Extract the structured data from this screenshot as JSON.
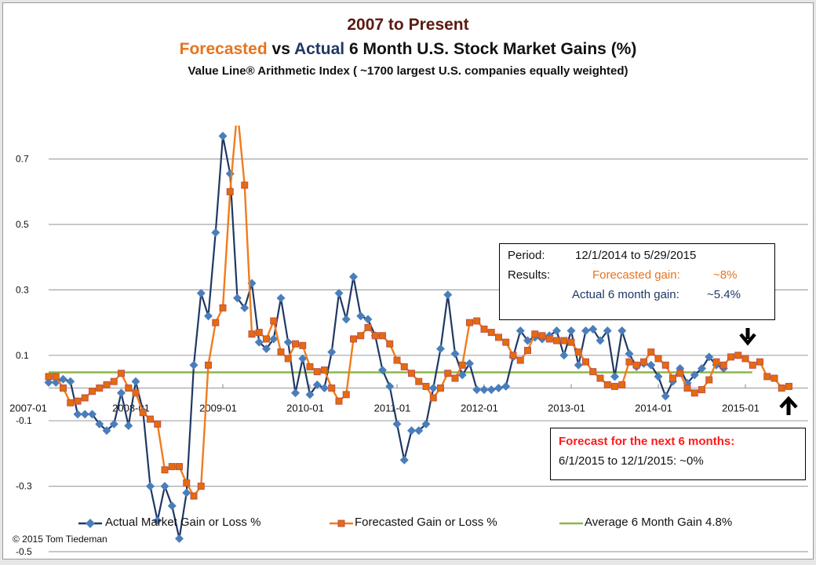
{
  "title": {
    "line1": "2007 to Present",
    "line2_forecasted": "Forecasted",
    "line2_vs": " vs ",
    "line2_actual": "Actual",
    "line2_rest": " 6 Month U.S. Stock Market Gains (%)",
    "line3": "Value Line® Arithmetic Index ( ~1700  largest U.S. companies equally weighted)"
  },
  "results_box": {
    "period_label": "Period:",
    "period_value": "12/1/2014  to 5/29/2015",
    "results_label": "Results:",
    "forecasted_label": "Forecasted gain:",
    "forecasted_value": "~8%",
    "actual_label": "Actual 6 month gain:",
    "actual_value": "~5.4%"
  },
  "forecast_box": {
    "heading": "Forecast for  the next 6 months:",
    "body": "6/1/2015  to 12/1/2015:   ~0%"
  },
  "copyright": "©  2015 Tom Tiedeman",
  "colors": {
    "actual_line": "#1f3864",
    "actual_marker": "#4a7ebb",
    "forecast_line": "#f07c1c",
    "forecast_marker_fill": "#e46c0a",
    "forecast_marker_edge": "#c0504d",
    "average_line": "#8db64a",
    "gridline": "#a6a6a6",
    "arrow": "#000000"
  },
  "chart_data": {
    "type": "line",
    "title": "Forecasted vs Actual 6 Month U.S. Stock Market Gains (%)",
    "xlabel": "",
    "ylabel": "",
    "x_start": "2007-01",
    "x_step": "month",
    "x_tick_labels": [
      "2007-01",
      "2008-01",
      "2009-01",
      "2010-01",
      "2011-01",
      "2012-01",
      "2013-01",
      "2014-01",
      "2015-01"
    ],
    "y_tick_labels": [
      "0.7",
      "0.5",
      "0.3",
      "0.1",
      "-0.1",
      "-0.3",
      "-0.5"
    ],
    "y_ticks": [
      0.7,
      0.5,
      0.3,
      0.1,
      -0.1,
      -0.3,
      -0.5
    ],
    "ylim": [
      -0.5,
      0.8
    ],
    "grid": true,
    "legend_position": "bottom",
    "series": [
      {
        "name": "Actual Market Gain or Loss %",
        "marker": "diamond",
        "values": [
          0.017,
          0.017,
          0.027,
          0.02,
          -0.08,
          -0.08,
          -0.08,
          -0.11,
          -0.13,
          -0.11,
          -0.015,
          -0.115,
          0.02,
          -0.07,
          -0.3,
          -0.405,
          -0.3,
          -0.36,
          -0.46,
          -0.32,
          0.07,
          0.29,
          0.22,
          0.475,
          0.77,
          0.655,
          0.275,
          0.245,
          0.32,
          0.14,
          0.12,
          0.15,
          0.275,
          0.14,
          -0.015,
          0.09,
          -0.02,
          0.01,
          0.0,
          0.11,
          0.29,
          0.21,
          0.34,
          0.22,
          0.21,
          0.16,
          0.055,
          0.005,
          -0.11,
          -0.22,
          -0.13,
          -0.13,
          -0.11,
          0.0,
          0.12,
          0.285,
          0.105,
          0.04,
          0.075,
          -0.005,
          -0.005,
          -0.005,
          0.0,
          0.005,
          0.095,
          0.175,
          0.145,
          0.155,
          0.15,
          0.16,
          0.175,
          0.1,
          0.175,
          0.07,
          0.175,
          0.18,
          0.145,
          0.175,
          0.035,
          0.175,
          0.105,
          0.065,
          0.075,
          0.07,
          0.035,
          -0.025,
          0.02,
          0.06,
          0.015,
          0.04,
          0.06,
          0.095,
          0.07,
          0.06
        ]
      },
      {
        "name": "Forecasted Gain or Loss %",
        "marker": "square",
        "values": [
          0.035,
          0.035,
          0.0,
          -0.045,
          -0.04,
          -0.03,
          -0.01,
          0.0,
          0.01,
          0.02,
          0.045,
          0.0,
          -0.015,
          -0.075,
          -0.095,
          -0.11,
          -0.25,
          -0.24,
          -0.24,
          -0.29,
          -0.33,
          -0.3,
          0.07,
          0.2,
          0.245,
          0.6,
          0.85,
          0.62,
          0.165,
          0.17,
          0.15,
          0.205,
          0.11,
          0.09,
          0.135,
          0.13,
          0.065,
          0.05,
          0.055,
          0.0,
          -0.04,
          -0.02,
          0.15,
          0.16,
          0.185,
          0.16,
          0.16,
          0.135,
          0.085,
          0.065,
          0.045,
          0.02,
          0.005,
          -0.03,
          0.0,
          0.045,
          0.03,
          0.07,
          0.2,
          0.205,
          0.18,
          0.17,
          0.155,
          0.14,
          0.1,
          0.085,
          0.115,
          0.165,
          0.16,
          0.15,
          0.145,
          0.145,
          0.14,
          0.11,
          0.08,
          0.05,
          0.03,
          0.01,
          0.005,
          0.01,
          0.08,
          0.07,
          0.08,
          0.11,
          0.09,
          0.07,
          0.03,
          0.045,
          0.0,
          -0.015,
          -0.005,
          0.025,
          0.08,
          0.07,
          0.095,
          0.1,
          0.09,
          0.07,
          0.08,
          0.035,
          0.03,
          0.0,
          0.005
        ]
      },
      {
        "name": "Average 6 Month Gain 4.8%",
        "marker": "none",
        "constant": 0.048,
        "span_months": 96
      }
    ],
    "annotations": [
      {
        "type": "arrow-down",
        "near": "2015-01",
        "meaning": "start of results period"
      },
      {
        "type": "arrow-up",
        "near": "2015-06",
        "meaning": "start of next forecast period"
      }
    ]
  }
}
